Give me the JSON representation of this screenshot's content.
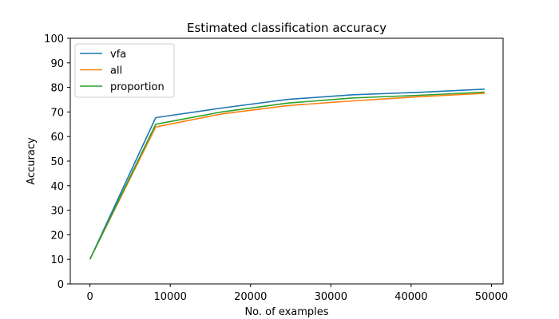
{
  "chart_data": {
    "type": "line",
    "title": "Estimated classification accuracy",
    "xlabel": "No. of examples",
    "ylabel": "Accuracy",
    "xlim": [
      -2450,
      51450
    ],
    "ylim": [
      0,
      100
    ],
    "xticks": [
      0,
      10000,
      20000,
      30000,
      40000,
      50000
    ],
    "yticks": [
      0,
      10,
      20,
      30,
      40,
      50,
      60,
      70,
      80,
      90,
      100
    ],
    "grid": false,
    "legend_position": "top-left",
    "x": [
      0,
      8192,
      16384,
      24576,
      32768,
      40960,
      49152
    ],
    "series": [
      {
        "name": "vfa",
        "color": "#1f77b4",
        "values": [
          10,
          67.7,
          71.6,
          75.1,
          77.0,
          78.0,
          79.3
        ]
      },
      {
        "name": "all",
        "color": "#ff7f0e",
        "values": [
          10,
          63.9,
          69.2,
          72.6,
          74.5,
          76.2,
          77.6
        ]
      },
      {
        "name": "proportion",
        "color": "#2ca02c",
        "values": [
          10,
          65.0,
          70.0,
          73.6,
          75.7,
          76.8,
          78.1
        ]
      }
    ]
  }
}
